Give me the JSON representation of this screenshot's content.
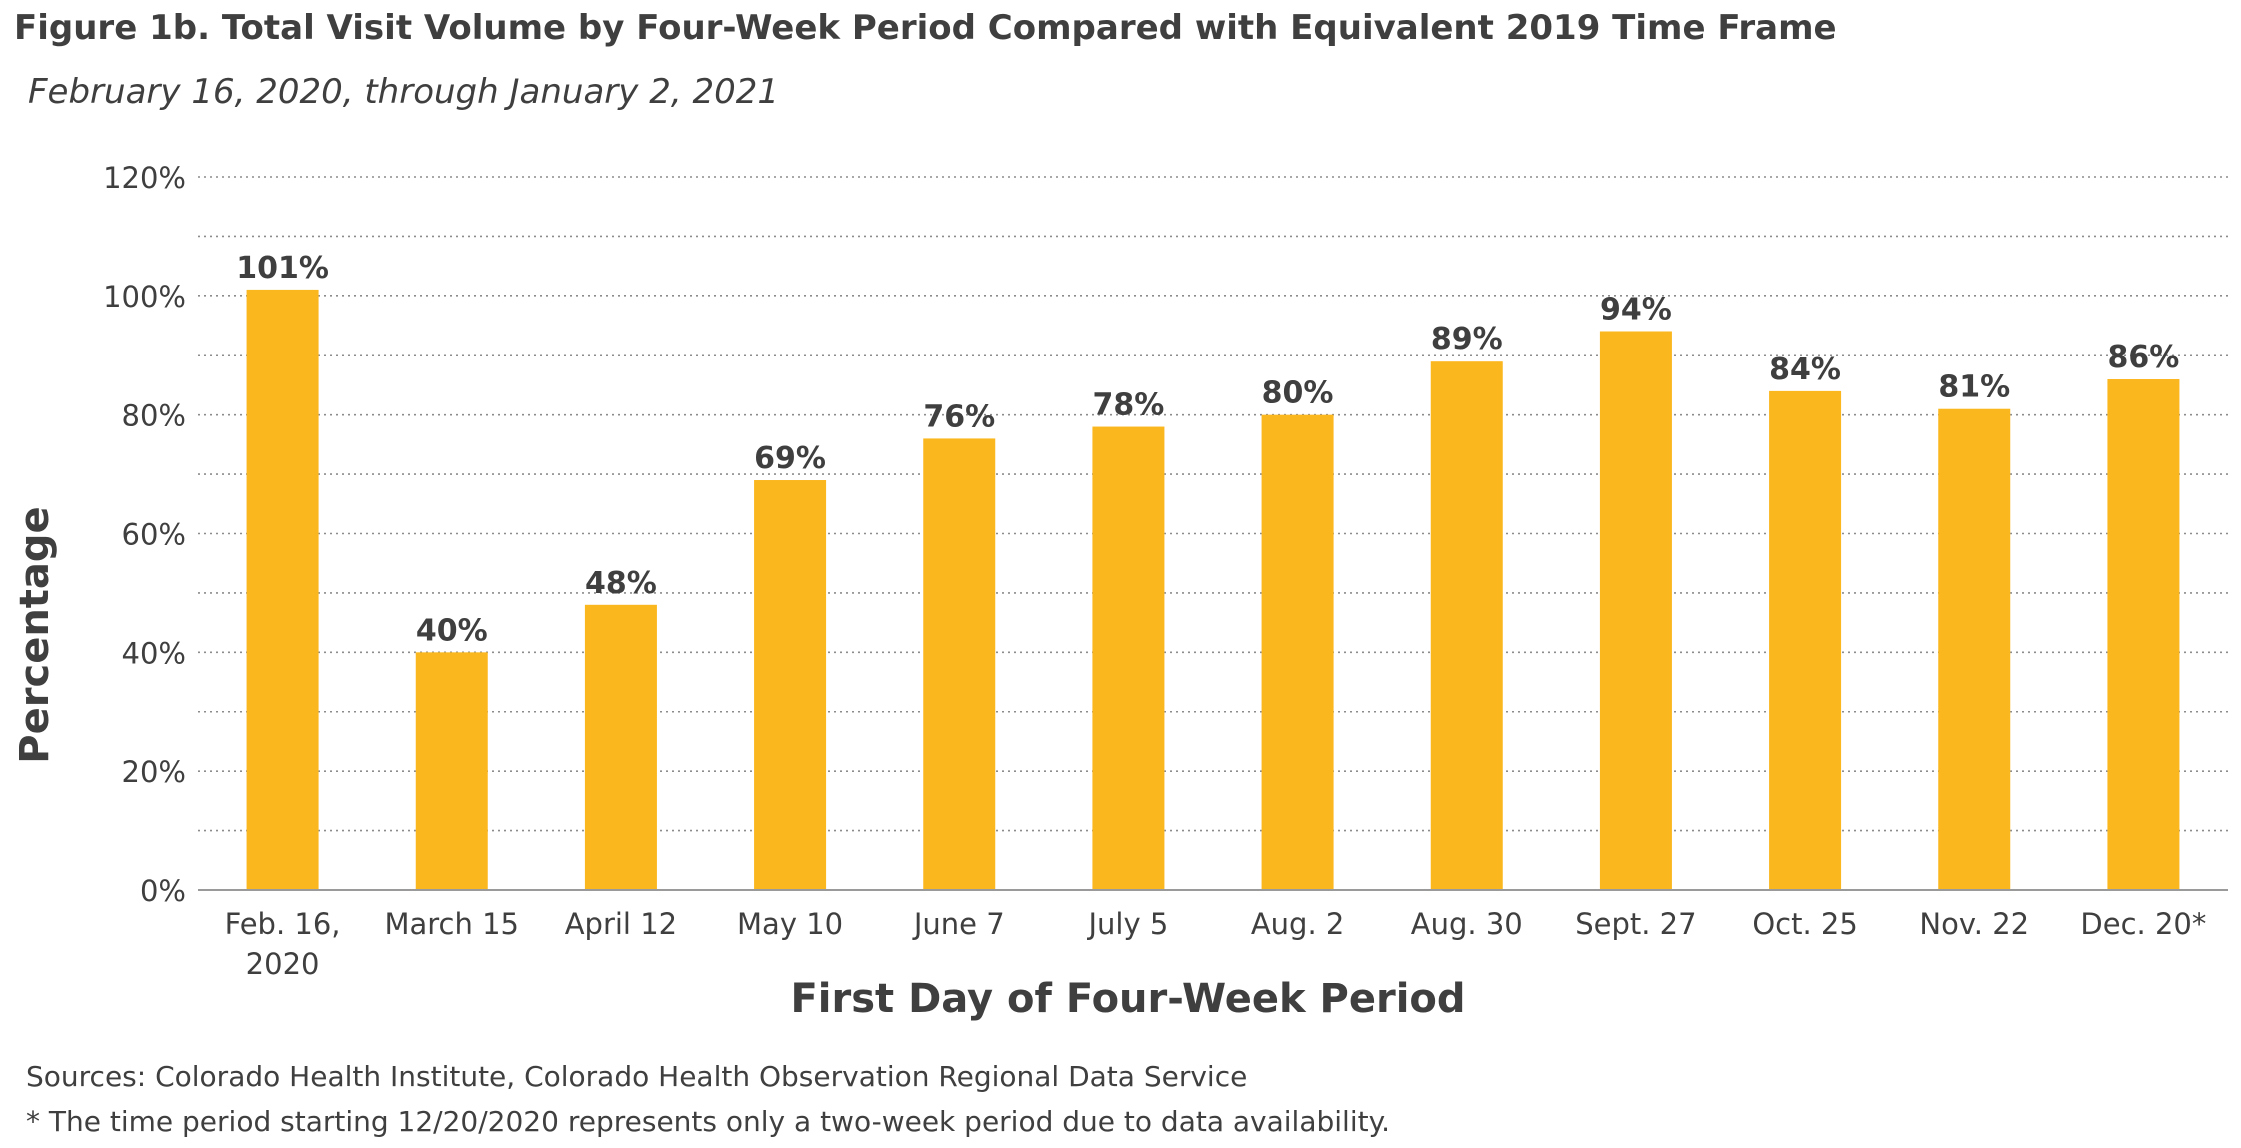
{
  "header": {
    "title": "Figure 1b. Total Visit Volume by Four-Week Period Compared with Equivalent 2019 Time Frame",
    "subtitle": "February 16, 2020, through January 2, 2021"
  },
  "chart_data": {
    "type": "bar",
    "title": "Figure 1b. Total Visit Volume by Four-Week Period Compared with Equivalent 2019 Time Frame",
    "subtitle": "February 16, 2020, through January 2, 2021",
    "xlabel": "First Day of Four-Week Period",
    "ylabel": "Percentage",
    "ylim": [
      0,
      120
    ],
    "yticks": [
      "0%",
      "20%",
      "40%",
      "60%",
      "80%",
      "100%",
      "120%"
    ],
    "categories": [
      [
        "Feb. 16,",
        "2020"
      ],
      [
        "March 15"
      ],
      [
        "April 12"
      ],
      [
        "May 10"
      ],
      [
        "June 7"
      ],
      [
        "July 5"
      ],
      [
        "Aug. 2"
      ],
      [
        "Aug. 30"
      ],
      [
        "Sept. 27"
      ],
      [
        "Oct. 25"
      ],
      [
        "Nov. 22"
      ],
      [
        "Dec. 20*"
      ]
    ],
    "values": [
      101,
      40,
      48,
      69,
      76,
      78,
      80,
      89,
      94,
      84,
      81,
      86
    ],
    "data_labels": [
      "101%",
      "40%",
      "48%",
      "69%",
      "76%",
      "78%",
      "80%",
      "89%",
      "94%",
      "84%",
      "81%",
      "86%"
    ],
    "bar_color": "#FBB71E",
    "grid": "dotted, every 10%",
    "legend": "none"
  },
  "notes": {
    "sources": "Sources: Colorado Health Institute, Colorado Health Observation Regional Data Service",
    "footnote": "* The time period starting 12/20/2020 represents only a two-week period due to data availability."
  }
}
